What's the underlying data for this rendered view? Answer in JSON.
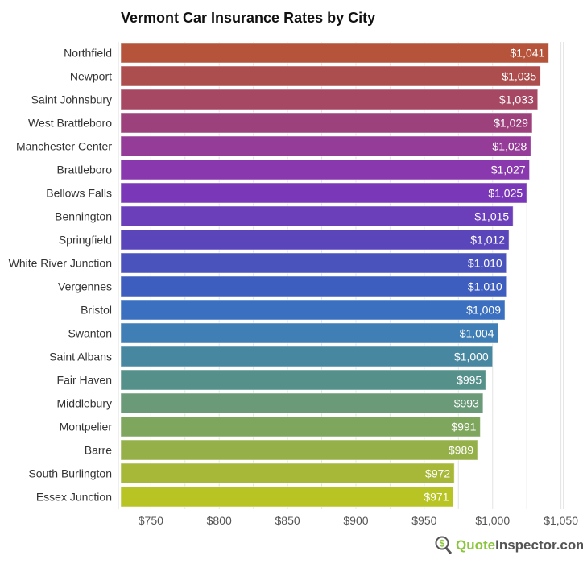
{
  "chart_data": {
    "type": "bar",
    "orientation": "horizontal",
    "title": "Vermont Car Insurance Rates by City",
    "categories": [
      "Northfield",
      "Newport",
      "Saint Johnsbury",
      "West Brattleboro",
      "Manchester Center",
      "Brattleboro",
      "Bellows Falls",
      "Bennington",
      "Springfield",
      "White River Junction",
      "Vergennes",
      "Bristol",
      "Swanton",
      "Saint Albans",
      "Fair Haven",
      "Middlebury",
      "Montpelier",
      "Barre",
      "South Burlington",
      "Essex Junction"
    ],
    "values": [
      1041,
      1035,
      1033,
      1029,
      1028,
      1027,
      1025,
      1015,
      1012,
      1010,
      1010,
      1009,
      1004,
      1000,
      995,
      993,
      991,
      989,
      972,
      971
    ],
    "data_labels": [
      "$1,041",
      "$1,035",
      "$1,033",
      "$1,029",
      "$1,028",
      "$1,027",
      "$1,025",
      "$1,015",
      "$1,012",
      "$1,010",
      "$1,010",
      "$1,009",
      "$1,004",
      "$1,000",
      "$995",
      "$993",
      "$991",
      "$989",
      "$972",
      "$971"
    ],
    "colors": [
      "#b5533b",
      "#ad4e4e",
      "#a64763",
      "#9d417d",
      "#953c98",
      "#8a38ad",
      "#7a38b8",
      "#6b3eba",
      "#5a46ba",
      "#4a52bb",
      "#3d5ebe",
      "#3a70bf",
      "#3f7fb5",
      "#4787a0",
      "#56908b",
      "#6a9a78",
      "#7fa65d",
      "#95b048",
      "#a7b838",
      "#b7c423"
    ],
    "xticks": [
      750,
      800,
      850,
      900,
      950,
      1000,
      1050
    ],
    "xtick_labels": [
      "$750",
      "$800",
      "$850",
      "$900",
      "$950",
      "$1,000",
      "$1,050"
    ],
    "xlim": [
      728,
      1052
    ],
    "grid": true
  },
  "logo": {
    "part1": "Quote",
    "part2": "Inspector.com",
    "icon": "dollar-magnifier-icon"
  }
}
